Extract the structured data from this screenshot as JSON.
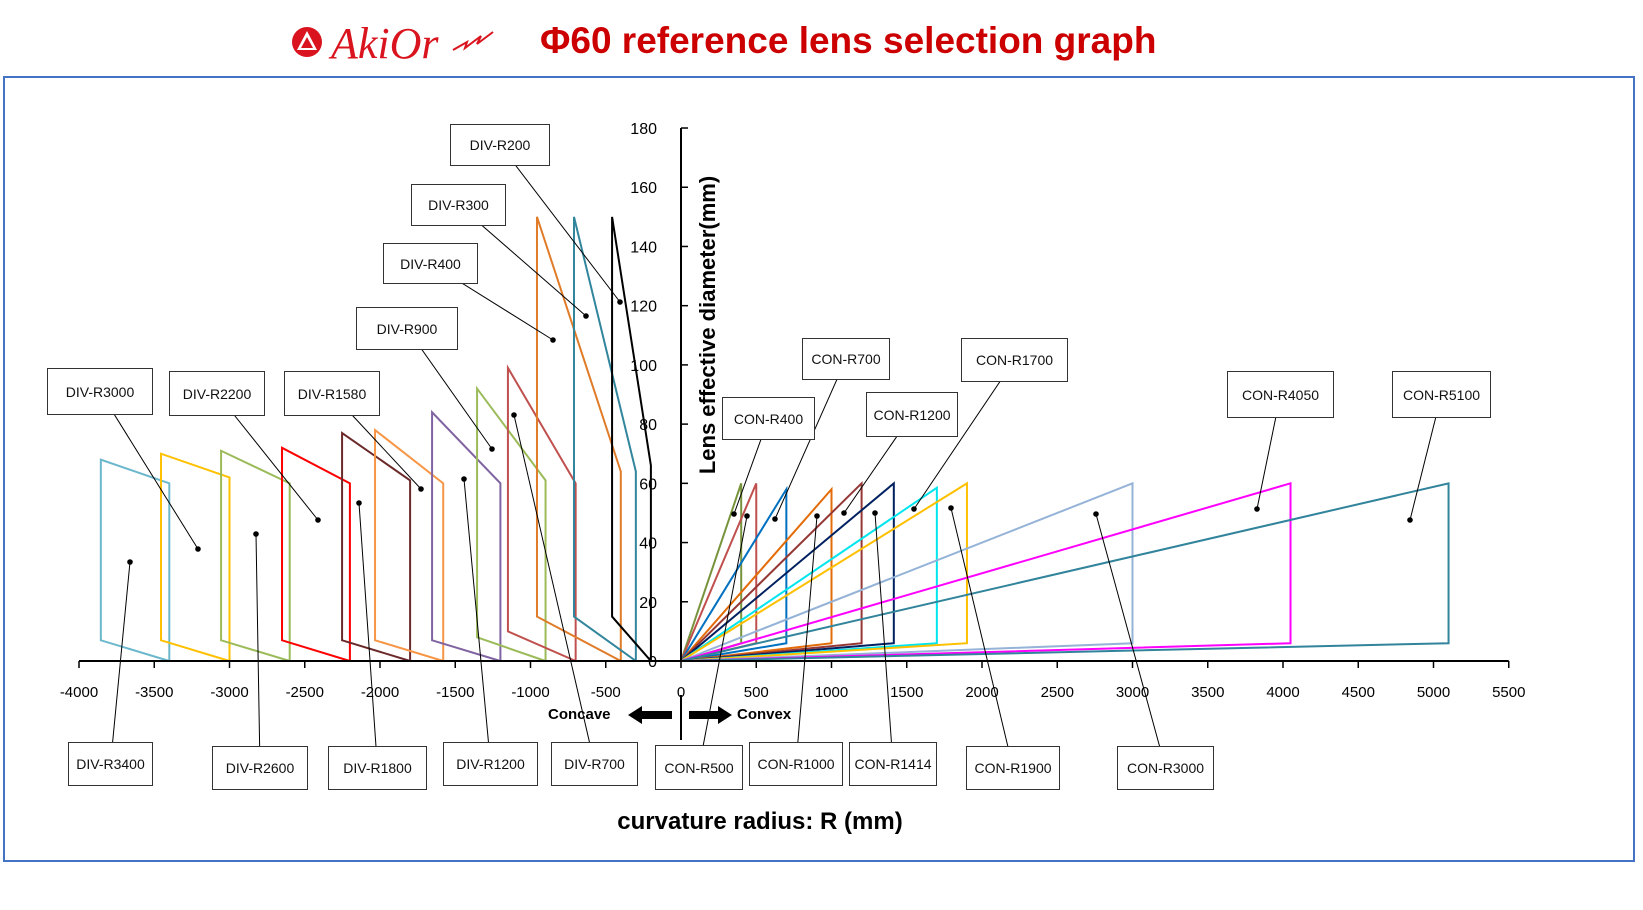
{
  "header": {
    "logo_text": "AkiOr",
    "title": "Φ60 reference lens selection graph"
  },
  "direction": {
    "concave": "Concave",
    "convex": "Convex"
  },
  "chart_data": {
    "type": "line",
    "title": "Φ60 reference lens selection graph",
    "xlabel": "curvature radius: R (mm)",
    "ylabel": "Lens effective diameter(mm)",
    "xlim": [
      -4000,
      5500
    ],
    "ylim": [
      0,
      180
    ],
    "x_ticks": [
      "-4000",
      "-3500",
      "-3000",
      "-2500",
      "-2000",
      "-1500",
      "-1000",
      "-500",
      "0",
      "500",
      "1000",
      "1500",
      "2000",
      "2500",
      "3000",
      "3500",
      "4000",
      "4500",
      "5000",
      "5500"
    ],
    "y_ticks": [
      "0",
      "20",
      "40",
      "60",
      "80",
      "100",
      "120",
      "140",
      "160",
      "180"
    ],
    "grid": false,
    "series": [
      {
        "name": "DIV-R3400",
        "color": "#6bb7cc",
        "points": [
          [
            -3400,
            0
          ],
          [
            -3400,
            60
          ],
          [
            -3855,
            68
          ],
          [
            -3855,
            7
          ],
          [
            -3400,
            0
          ]
        ]
      },
      {
        "name": "DIV-R3000",
        "color": "#ffc000",
        "points": [
          [
            -3000,
            0
          ],
          [
            -3000,
            62
          ],
          [
            -3455,
            70
          ],
          [
            -3455,
            7
          ],
          [
            -3000,
            0
          ]
        ]
      },
      {
        "name": "DIV-R2600",
        "color": "#9bbb59",
        "points": [
          [
            -2600,
            0
          ],
          [
            -2600,
            60
          ],
          [
            -3056,
            71
          ],
          [
            -3056,
            7
          ],
          [
            -2600,
            0
          ]
        ]
      },
      {
        "name": "DIV-R2200",
        "color": "#ff0000",
        "points": [
          [
            -2200,
            0
          ],
          [
            -2200,
            60
          ],
          [
            -2651,
            72
          ],
          [
            -2651,
            7
          ],
          [
            -2200,
            0
          ]
        ]
      },
      {
        "name": "DIV-R1800",
        "color": "#6b2a2a",
        "points": [
          [
            -1800,
            0
          ],
          [
            -1800,
            61
          ],
          [
            -2252,
            77
          ],
          [
            -2252,
            7
          ],
          [
            -1800,
            0
          ]
        ]
      },
      {
        "name": "DIV-R1580",
        "color": "#f79646",
        "points": [
          [
            -1580,
            0
          ],
          [
            -1580,
            60
          ],
          [
            -2033,
            78
          ],
          [
            -2033,
            7
          ],
          [
            -1580,
            0
          ]
        ]
      },
      {
        "name": "DIV-R1200",
        "color": "#8064a2",
        "points": [
          [
            -1200,
            0
          ],
          [
            -1200,
            60
          ],
          [
            -1654,
            84
          ],
          [
            -1654,
            7
          ],
          [
            -1200,
            0
          ]
        ]
      },
      {
        "name": "DIV-R900",
        "color": "#9bbb59",
        "points": [
          [
            -900,
            0
          ],
          [
            -900,
            61
          ],
          [
            -1355,
            92
          ],
          [
            -1355,
            8
          ],
          [
            -900,
            0
          ]
        ]
      },
      {
        "name": "DIV-R700",
        "color": "#c0504d",
        "points": [
          [
            -700,
            0
          ],
          [
            -700,
            60
          ],
          [
            -1150,
            99
          ],
          [
            -1150,
            10
          ],
          [
            -700,
            0
          ]
        ]
      },
      {
        "name": "DIV-R400",
        "color": "#e07b28",
        "points": [
          [
            -400,
            0
          ],
          [
            -400,
            64
          ],
          [
            -957,
            150
          ],
          [
            -957,
            15
          ],
          [
            -400,
            0
          ]
        ]
      },
      {
        "name": "DIV-R300",
        "color": "#31859c",
        "points": [
          [
            -300,
            0
          ],
          [
            -300,
            64
          ],
          [
            -711,
            150
          ],
          [
            -711,
            15
          ],
          [
            -300,
            0
          ]
        ]
      },
      {
        "name": "DIV-R200",
        "color": "#000000",
        "points": [
          [
            -200,
            0
          ],
          [
            -200,
            66
          ],
          [
            -458,
            150
          ],
          [
            -458,
            15
          ],
          [
            -200,
            0
          ]
        ]
      },
      {
        "name": "CON-R400",
        "color": "#77933c",
        "points": [
          [
            0,
            0
          ],
          [
            400,
            60
          ],
          [
            400,
            6
          ],
          [
            0,
            0
          ]
        ]
      },
      {
        "name": "CON-R500",
        "color": "#c0504d",
        "points": [
          [
            0,
            0
          ],
          [
            500,
            60
          ],
          [
            500,
            6
          ],
          [
            0,
            0
          ]
        ]
      },
      {
        "name": "CON-R700",
        "color": "#0070c0",
        "points": [
          [
            0,
            0
          ],
          [
            700,
            58
          ],
          [
            700,
            6
          ],
          [
            0,
            0
          ]
        ]
      },
      {
        "name": "CON-R1000",
        "color": "#e36c09",
        "points": [
          [
            0,
            0
          ],
          [
            1000,
            58
          ],
          [
            1000,
            6
          ],
          [
            0,
            0
          ]
        ]
      },
      {
        "name": "CON-R1200",
        "color": "#953735",
        "points": [
          [
            0,
            0
          ],
          [
            1200,
            60
          ],
          [
            1200,
            6
          ],
          [
            0,
            0
          ]
        ]
      },
      {
        "name": "CON-R1414",
        "color": "#002060",
        "points": [
          [
            0,
            0
          ],
          [
            1414,
            60
          ],
          [
            1414,
            6
          ],
          [
            0,
            0
          ]
        ]
      },
      {
        "name": "CON-R1700",
        "color": "#00e5ee",
        "points": [
          [
            0,
            0
          ],
          [
            1700,
            58.5
          ],
          [
            1700,
            6
          ],
          [
            0,
            0
          ]
        ]
      },
      {
        "name": "CON-R1900",
        "color": "#ffc000",
        "points": [
          [
            0,
            0
          ],
          [
            1900,
            60
          ],
          [
            1900,
            6
          ],
          [
            0,
            0
          ]
        ]
      },
      {
        "name": "CON-R3000",
        "color": "#95b3d7",
        "points": [
          [
            0,
            0
          ],
          [
            3000,
            60
          ],
          [
            3000,
            6
          ],
          [
            0,
            0
          ]
        ]
      },
      {
        "name": "CON-R4050",
        "color": "#ff00ff",
        "points": [
          [
            0,
            0
          ],
          [
            4050,
            60
          ],
          [
            4050,
            6
          ],
          [
            0,
            0
          ]
        ]
      },
      {
        "name": "CON-R5100",
        "color": "#31849b",
        "points": [
          [
            0,
            0
          ],
          [
            5100,
            60
          ],
          [
            5100,
            6
          ],
          [
            0,
            0
          ]
        ]
      }
    ]
  }
}
